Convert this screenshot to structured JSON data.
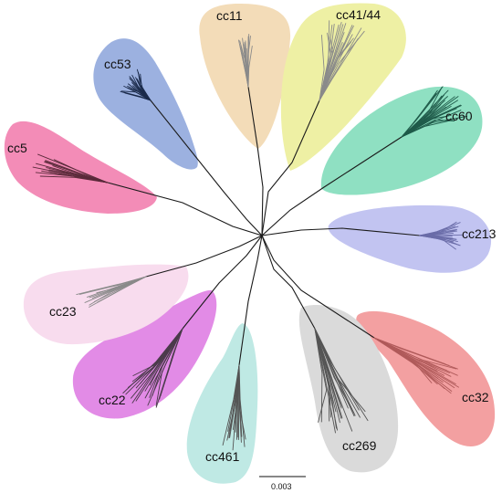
{
  "figure": {
    "scale_bar": {
      "label": "0.003"
    },
    "clades": [
      {
        "id": "cc11",
        "label": "cc11",
        "fill": "#f3dcb8",
        "line": "#8a8a8a"
      },
      {
        "id": "cc41-44",
        "label": "cc41/44",
        "fill": "#eef0a4",
        "line": "#8a8a8a"
      },
      {
        "id": "cc60",
        "label": "cc60",
        "fill": "#8fe0c2",
        "line": "#1f5b4a"
      },
      {
        "id": "cc213",
        "label": "cc213",
        "fill": "#c2c4f1",
        "line": "#6a6ca8"
      },
      {
        "id": "cc32",
        "label": "cc32",
        "fill": "#f3a0a1",
        "line": "#b05a5a"
      },
      {
        "id": "cc269",
        "label": "cc269",
        "fill": "#dadada",
        "line": "#555555"
      },
      {
        "id": "cc461",
        "label": "cc461",
        "fill": "#bfe9e4",
        "line": "#555555"
      },
      {
        "id": "cc22",
        "label": "cc22",
        "fill": "#e28be6",
        "line": "#4a3a4a"
      },
      {
        "id": "cc23",
        "label": "cc23",
        "fill": "#f8dcee",
        "line": "#8a8a8a"
      },
      {
        "id": "cc5",
        "label": "cc5",
        "fill": "#f38cb7",
        "line": "#5a2a3a"
      },
      {
        "id": "cc53",
        "label": "cc53",
        "fill": "#9cb1e0",
        "line": "#1a2a4a"
      }
    ]
  }
}
